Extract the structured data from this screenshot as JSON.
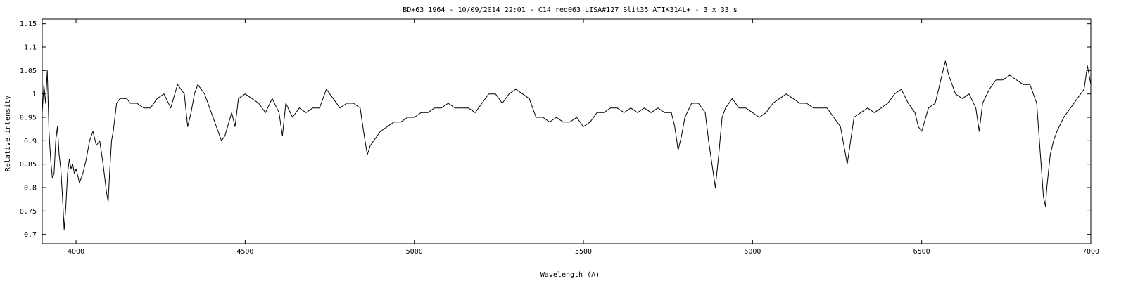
{
  "chart_data": {
    "type": "line",
    "title": "BD+63 1964 - 10/09/2014 22:01 - C14 red063 LISA#127 Slit35 ATIK314L+ - 3 x 33 s",
    "xlabel": "Wavelength (A)",
    "ylabel": "Relative intensity",
    "xlim": [
      3900,
      7000
    ],
    "ylim": [
      0.68,
      1.16
    ],
    "x_ticks": [
      4000,
      4500,
      5000,
      5500,
      6000,
      6500,
      7000
    ],
    "x_tick_labels": [
      "4000",
      "4500",
      "5000",
      "5500",
      "6000",
      "6500",
      "7000"
    ],
    "y_ticks": [
      0.7,
      0.75,
      0.8,
      0.85,
      0.9,
      0.95,
      1.0,
      1.05,
      1.1,
      1.15
    ],
    "y_tick_labels": [
      "0.7",
      "0.75",
      "0.8",
      "0.85",
      "0.9",
      "0.95",
      "1",
      "1.05",
      "1.1",
      "1.15"
    ],
    "grid": false,
    "line_color": "#000000",
    "series": [
      {
        "x": [
          3900,
          3905,
          3910,
          3915,
          3920,
          3925,
          3930,
          3935,
          3940,
          3945,
          3950,
          3955,
          3960,
          3965,
          3970,
          3975,
          3980,
          3985,
          3990,
          3995,
          4000,
          4010,
          4020,
          4030,
          4040,
          4050,
          4060,
          4070,
          4080,
          4090,
          4095,
          4100,
          4105,
          4110,
          4120,
          4130,
          4140,
          4150,
          4160,
          4180,
          4200,
          4220,
          4240,
          4260,
          4280,
          4300,
          4320,
          4330,
          4340,
          4350,
          4360,
          4380,
          4400,
          4420,
          4430,
          4440,
          4460,
          4470,
          4480,
          4500,
          4520,
          4540,
          4560,
          4580,
          4600,
          4610,
          4620,
          4640,
          4660,
          4680,
          4700,
          4720,
          4740,
          4760,
          4780,
          4800,
          4820,
          4840,
          4850,
          4861,
          4870,
          4880,
          4900,
          4920,
          4940,
          4960,
          4980,
          5000,
          5020,
          5040,
          5060,
          5080,
          5100,
          5120,
          5140,
          5160,
          5180,
          5200,
          5220,
          5240,
          5260,
          5280,
          5300,
          5320,
          5340,
          5360,
          5380,
          5400,
          5420,
          5440,
          5460,
          5480,
          5500,
          5520,
          5540,
          5560,
          5580,
          5600,
          5620,
          5640,
          5660,
          5680,
          5700,
          5720,
          5740,
          5760,
          5770,
          5780,
          5790,
          5800,
          5820,
          5840,
          5860,
          5870,
          5880,
          5890,
          5900,
          5910,
          5920,
          5940,
          5960,
          5980,
          6000,
          6020,
          6040,
          6060,
          6080,
          6100,
          6120,
          6140,
          6160,
          6180,
          6200,
          6220,
          6240,
          6260,
          6270,
          6280,
          6290,
          6300,
          6320,
          6340,
          6360,
          6380,
          6400,
          6420,
          6440,
          6460,
          6480,
          6490,
          6500,
          6520,
          6540,
          6550,
          6563,
          6570,
          6580,
          6600,
          6620,
          6640,
          6660,
          6670,
          6680,
          6700,
          6720,
          6740,
          6760,
          6780,
          6800,
          6820,
          6840,
          6850,
          6860,
          6866,
          6870,
          6880,
          6890,
          6900,
          6920,
          6940,
          6960,
          6980,
          6990,
          7000
        ],
        "y": [
          0.96,
          1.02,
          0.98,
          1.05,
          0.92,
          0.86,
          0.82,
          0.83,
          0.9,
          0.93,
          0.87,
          0.84,
          0.78,
          0.71,
          0.76,
          0.83,
          0.86,
          0.84,
          0.85,
          0.83,
          0.84,
          0.81,
          0.83,
          0.86,
          0.9,
          0.92,
          0.89,
          0.9,
          0.85,
          0.79,
          0.77,
          0.84,
          0.9,
          0.92,
          0.98,
          0.99,
          0.99,
          0.99,
          0.98,
          0.98,
          0.97,
          0.97,
          0.99,
          1.0,
          0.97,
          1.02,
          1.0,
          0.93,
          0.96,
          1.0,
          1.02,
          1.0,
          0.96,
          0.92,
          0.9,
          0.91,
          0.96,
          0.93,
          0.99,
          1.0,
          0.99,
          0.98,
          0.96,
          0.99,
          0.96,
          0.91,
          0.98,
          0.95,
          0.97,
          0.96,
          0.97,
          0.97,
          1.01,
          0.99,
          0.97,
          0.98,
          0.98,
          0.97,
          0.92,
          0.87,
          0.89,
          0.9,
          0.92,
          0.93,
          0.94,
          0.94,
          0.95,
          0.95,
          0.96,
          0.96,
          0.97,
          0.97,
          0.98,
          0.97,
          0.97,
          0.97,
          0.96,
          0.98,
          1.0,
          1.0,
          0.98,
          1.0,
          1.01,
          1.0,
          0.99,
          0.95,
          0.95,
          0.94,
          0.95,
          0.94,
          0.94,
          0.95,
          0.93,
          0.94,
          0.96,
          0.96,
          0.97,
          0.97,
          0.96,
          0.97,
          0.96,
          0.97,
          0.96,
          0.97,
          0.96,
          0.96,
          0.93,
          0.88,
          0.91,
          0.95,
          0.98,
          0.98,
          0.96,
          0.9,
          0.85,
          0.8,
          0.87,
          0.95,
          0.97,
          0.99,
          0.97,
          0.97,
          0.96,
          0.95,
          0.96,
          0.98,
          0.99,
          1.0,
          0.99,
          0.98,
          0.98,
          0.97,
          0.97,
          0.97,
          0.95,
          0.93,
          0.89,
          0.85,
          0.9,
          0.95,
          0.96,
          0.97,
          0.96,
          0.97,
          0.98,
          1.0,
          1.01,
          0.98,
          0.96,
          0.93,
          0.92,
          0.97,
          0.98,
          1.01,
          1.05,
          1.07,
          1.04,
          1.0,
          0.99,
          1.0,
          0.97,
          0.92,
          0.98,
          1.01,
          1.03,
          1.03,
          1.04,
          1.03,
          1.02,
          1.02,
          0.98,
          0.88,
          0.78,
          0.76,
          0.8,
          0.87,
          0.9,
          0.92,
          0.95,
          0.97,
          0.99,
          1.01,
          1.06,
          1.02
        ]
      }
    ]
  }
}
